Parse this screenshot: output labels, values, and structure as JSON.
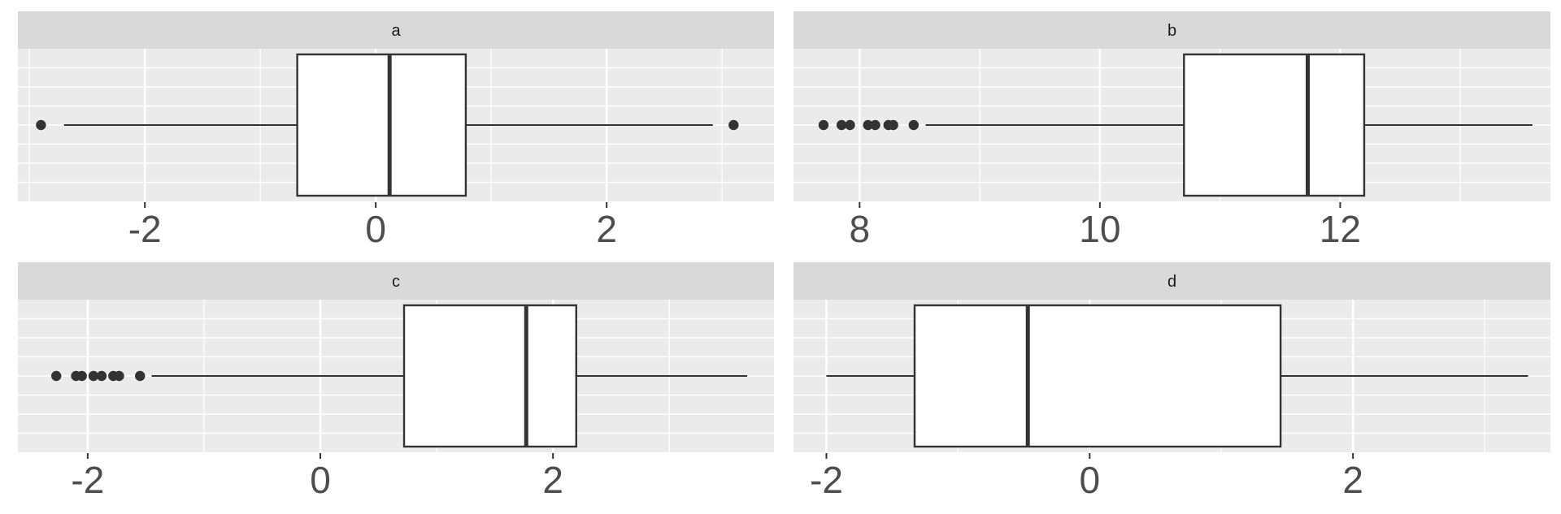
{
  "chart_data": [
    {
      "type": "boxplot",
      "panel": "a",
      "xlim": [
        -3.1,
        3.45
      ],
      "ticks": [
        -2,
        0,
        2
      ],
      "tick_labels": [
        "-2",
        "0",
        "2"
      ],
      "box": {
        "whisker_low": -2.7,
        "q1": -0.68,
        "median": 0.12,
        "q3": 0.78,
        "whisker_high": 2.92
      },
      "outliers": [
        -2.9,
        3.1
      ],
      "grid": true
    },
    {
      "type": "boxplot",
      "panel": "b",
      "xlim": [
        7.45,
        13.75
      ],
      "ticks": [
        8,
        10,
        12
      ],
      "tick_labels": [
        "8",
        "10",
        "12"
      ],
      "box": {
        "whisker_low": 8.55,
        "q1": 10.7,
        "median": 11.73,
        "q3": 12.2,
        "whisker_high": 13.6
      },
      "outliers": [
        7.7,
        7.85,
        7.92,
        8.07,
        8.13,
        8.24,
        8.28,
        8.45
      ],
      "grid": true
    },
    {
      "type": "boxplot",
      "panel": "c",
      "xlim": [
        -2.6,
        3.9
      ],
      "ticks": [
        -2,
        0,
        2
      ],
      "tick_labels": [
        "-2",
        "0",
        "2"
      ],
      "box": {
        "whisker_low": -1.45,
        "q1": 0.72,
        "median": 1.77,
        "q3": 2.2,
        "whisker_high": 3.67
      },
      "outliers": [
        -2.27,
        -2.1,
        -2.05,
        -1.95,
        -1.88,
        -1.78,
        -1.73,
        -1.55
      ],
      "grid": true
    },
    {
      "type": "boxplot",
      "panel": "d",
      "xlim": [
        -2.25,
        3.5
      ],
      "ticks": [
        -2,
        0,
        2
      ],
      "tick_labels": [
        "-2",
        "0",
        "2"
      ],
      "box": {
        "whisker_low": -2.0,
        "q1": -1.33,
        "median": -0.47,
        "q3": 1.45,
        "whisker_high": 3.33
      },
      "outliers": [],
      "grid": true
    }
  ],
  "style": {
    "panel_bg": "#ebebeb",
    "strip_bg": "#d9d9d9",
    "grid_major": "#ffffff",
    "ink": "#333333",
    "tick_label_color": "#4d4d4d"
  }
}
